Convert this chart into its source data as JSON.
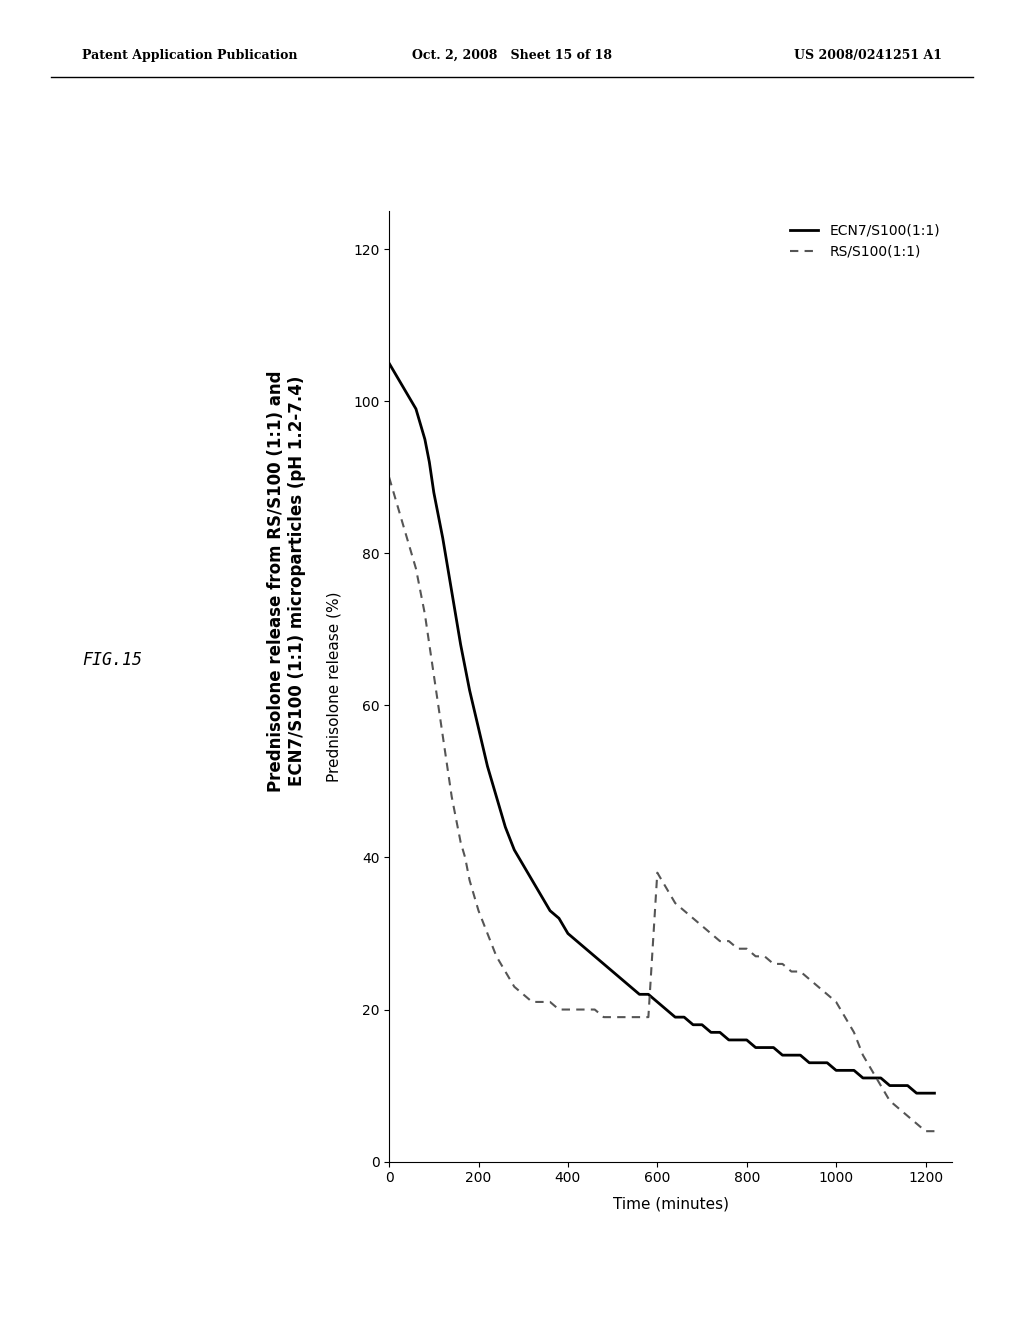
{
  "title_line1": "Prednisolone release from RS/S100 (1:1) and",
  "title_line2": "ECN7/S100 (1:1) microparticles (pH 1.2-7.4)",
  "fig_label": "FIG.15",
  "xlabel": "Time (minutes)",
  "ylabel": "Prednisolone release (%)",
  "x_ticks": [
    0,
    200,
    400,
    600,
    800,
    1000,
    1200
  ],
  "y_ticks": [
    0,
    20,
    40,
    60,
    80,
    100,
    120
  ],
  "xlim": [
    0,
    1260
  ],
  "ylim": [
    0,
    125
  ],
  "legend_entries": [
    "ECN7/S100(1:1)",
    "RS/S100(1:1)"
  ],
  "header_left": "Patent Application Publication",
  "header_mid": "Oct. 2, 2008   Sheet 15 of 18",
  "header_right": "US 2008/0241251 A1",
  "ecn_color": "#000000",
  "rs_color": "#555555",
  "background": "#ffffff",
  "ecn7_x": [
    0,
    10,
    20,
    30,
    40,
    50,
    60,
    70,
    80,
    90,
    100,
    120,
    140,
    160,
    180,
    200,
    220,
    240,
    260,
    280,
    300,
    320,
    340,
    360,
    380,
    400,
    420,
    440,
    460,
    480,
    500,
    520,
    540,
    560,
    580,
    600,
    620,
    640,
    660,
    680,
    700,
    720,
    740,
    760,
    780,
    800,
    820,
    840,
    860,
    880,
    900,
    920,
    940,
    960,
    980,
    1000,
    1020,
    1040,
    1060,
    1080,
    1100,
    1120,
    1140,
    1160,
    1180,
    1200,
    1220
  ],
  "ecn7_y": [
    105,
    104,
    103,
    102,
    101,
    100,
    99,
    97,
    95,
    92,
    88,
    82,
    75,
    68,
    62,
    57,
    52,
    48,
    44,
    41,
    39,
    37,
    35,
    33,
    32,
    30,
    29,
    28,
    27,
    26,
    25,
    24,
    23,
    22,
    22,
    21,
    20,
    19,
    19,
    18,
    18,
    17,
    17,
    16,
    16,
    16,
    15,
    15,
    15,
    14,
    14,
    14,
    13,
    13,
    13,
    12,
    12,
    12,
    11,
    11,
    11,
    10,
    10,
    10,
    9,
    9,
    9
  ],
  "rs_x": [
    0,
    10,
    20,
    30,
    40,
    50,
    60,
    70,
    80,
    90,
    100,
    110,
    120,
    130,
    140,
    150,
    160,
    170,
    180,
    200,
    220,
    240,
    260,
    280,
    300,
    320,
    340,
    360,
    380,
    400,
    420,
    440,
    460,
    480,
    500,
    520,
    540,
    560,
    580,
    600,
    620,
    640,
    660,
    680,
    700,
    720,
    740,
    760,
    780,
    800,
    820,
    840,
    860,
    880,
    900,
    920,
    940,
    960,
    980,
    1000,
    1020,
    1040,
    1060,
    1080,
    1100,
    1120,
    1140,
    1160,
    1180,
    1200,
    1220
  ],
  "rs_y": [
    90,
    88,
    86,
    84,
    82,
    80,
    78,
    75,
    72,
    68,
    64,
    60,
    56,
    52,
    48,
    45,
    42,
    40,
    37,
    33,
    30,
    27,
    25,
    23,
    22,
    21,
    21,
    21,
    20,
    20,
    20,
    20,
    20,
    19,
    19,
    19,
    19,
    19,
    19,
    38,
    36,
    34,
    33,
    32,
    31,
    30,
    29,
    29,
    28,
    28,
    27,
    27,
    26,
    26,
    25,
    25,
    24,
    23,
    22,
    21,
    19,
    17,
    14,
    12,
    10,
    8,
    7,
    6,
    5,
    4,
    4
  ]
}
